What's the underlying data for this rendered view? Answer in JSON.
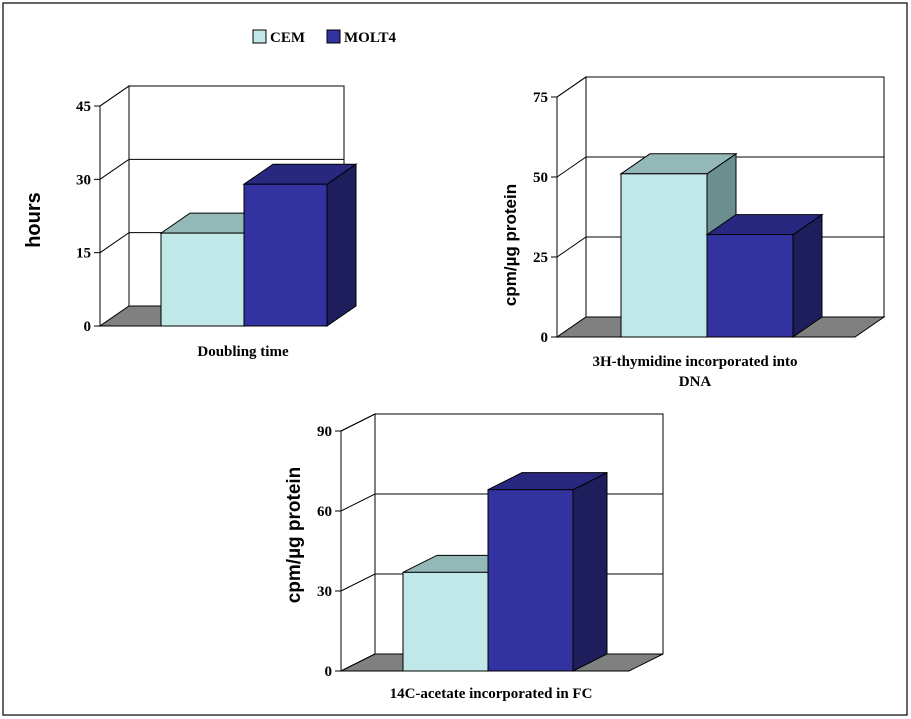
{
  "legend": [
    {
      "name": "CEM",
      "color": "#c0e8e8",
      "side": "#6b8e8e",
      "top": "#94b8b8"
    },
    {
      "name": "MOLT4",
      "color": "#3232a0",
      "side": "#1e1e5c",
      "top": "#282880"
    }
  ],
  "chart_data": [
    {
      "type": "bar",
      "categories": [
        "Doubling time"
      ],
      "xlabel_lines": [
        "Doubling time"
      ],
      "ylabel": "hours",
      "ylim": [
        0,
        45
      ],
      "yticks": [
        0,
        15,
        30,
        45
      ],
      "series": [
        {
          "name": "CEM",
          "values": [
            19
          ]
        },
        {
          "name": "MOLT4",
          "values": [
            29
          ]
        }
      ],
      "legend_position": "top-left",
      "grid": true
    },
    {
      "type": "bar",
      "categories": [
        "3H-thymidine incorporated into DNA"
      ],
      "xlabel_lines": [
        "3H-thymidine incorporated into",
        "DNA"
      ],
      "ylabel": "cpm/µg protein",
      "ylim": [
        0,
        75
      ],
      "yticks": [
        0,
        25,
        50,
        75
      ],
      "series": [
        {
          "name": "CEM",
          "values": [
            51
          ]
        },
        {
          "name": "MOLT4",
          "values": [
            32
          ]
        }
      ],
      "grid": true
    },
    {
      "type": "bar",
      "categories": [
        "14C-acetate incorporated in FC"
      ],
      "xlabel_lines": [
        "14C-acetate incorporated in FC"
      ],
      "ylabel": "cpm/µg protein",
      "ylim": [
        0,
        90
      ],
      "yticks": [
        0,
        30,
        60,
        90
      ],
      "series": [
        {
          "name": "CEM",
          "values": [
            37
          ]
        },
        {
          "name": "MOLT4",
          "values": [
            68
          ]
        }
      ],
      "grid": true
    }
  ]
}
